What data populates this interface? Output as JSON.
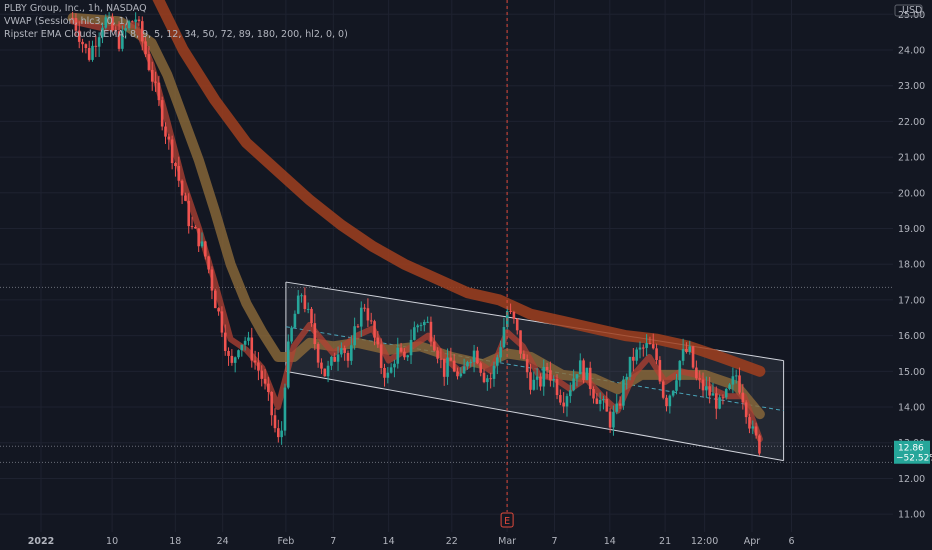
{
  "legend": {
    "line1": "PLBY Group, Inc., 1h, NASDAQ",
    "line2": "VWAP (Session, hlc3, 0, 1)",
    "line3": "Ripster EMA Clouds (EMA, 8, 9, 5, 12, 34, 50, 72, 89, 180, 200, hl2, 0, 0)"
  },
  "currency": "USD",
  "price_tag": {
    "price": "12.86",
    "change": "−52.52%"
  },
  "earnings_marker": "E",
  "colors": {
    "background": "#131722",
    "up": "#26a69a",
    "down": "#ef5350",
    "channel": "#d1d4dc",
    "ema_fast": "#b24233",
    "ema_mid": "#8c6a3a",
    "ema_slow": "#a0401f",
    "vwap": "#8a8e99",
    "grid": "#1e2230",
    "tag": "#26a69a"
  },
  "chart_data": {
    "type": "candlestick",
    "title": "PLBY Group, Inc., 1h, NASDAQ",
    "y_axis": {
      "min": 10.5,
      "max": 25.4,
      "side": "right",
      "unit": "USD",
      "ticks": [
        "11.00",
        "12.00",
        "13.00",
        "14.00",
        "15.00",
        "16.00",
        "17.00",
        "18.00",
        "19.00",
        "20.00",
        "21.00",
        "22.00",
        "23.00",
        "24.00",
        "25.00"
      ]
    },
    "x_axis": {
      "range_days": [
        0,
        100
      ],
      "ticks": [
        {
          "label": "2022",
          "day": 0
        },
        {
          "label": "10",
          "day": 9
        },
        {
          "label": "18",
          "day": 17
        },
        {
          "label": "24",
          "day": 23
        },
        {
          "label": "Feb",
          "day": 31
        },
        {
          "label": "7",
          "day": 37
        },
        {
          "label": "14",
          "day": 44
        },
        {
          "label": "22",
          "day": 52
        },
        {
          "label": "Mar",
          "day": 59
        },
        {
          "label": "7",
          "day": 65
        },
        {
          "label": "14",
          "day": 72
        },
        {
          "label": "21",
          "day": 79
        },
        {
          "label": "12:00",
          "day": 84
        },
        {
          "label": "Apr",
          "day": 90
        },
        {
          "label": "6",
          "day": 95
        }
      ]
    },
    "close_path": [
      [
        4,
        24.9
      ],
      [
        6,
        23.8
      ],
      [
        8,
        24.9
      ],
      [
        10,
        24.2
      ],
      [
        11,
        24.7
      ],
      [
        12,
        24.9
      ],
      [
        13,
        24.1
      ],
      [
        14,
        23.3
      ],
      [
        15,
        22.4
      ],
      [
        16,
        21.5
      ],
      [
        17,
        20.8
      ],
      [
        18,
        19.8
      ],
      [
        19,
        19.0
      ],
      [
        20,
        18.7
      ],
      [
        21,
        18.1
      ],
      [
        22,
        17.0
      ],
      [
        23,
        16.2
      ],
      [
        24,
        15.0
      ],
      [
        25,
        15.8
      ],
      [
        26,
        15.9
      ],
      [
        27,
        15.3
      ],
      [
        28,
        14.8
      ],
      [
        29,
        14.0
      ],
      [
        30,
        13.0
      ],
      [
        30.5,
        13.4
      ],
      [
        31,
        15.2
      ],
      [
        32,
        16.5
      ],
      [
        33,
        17.2
      ],
      [
        34,
        16.4
      ],
      [
        35,
        15.5
      ],
      [
        36,
        14.9
      ],
      [
        37,
        15.3
      ],
      [
        38,
        15.9
      ],
      [
        39,
        15.2
      ],
      [
        40,
        16.4
      ],
      [
        41,
        16.9
      ],
      [
        42,
        16.1
      ],
      [
        43,
        15.2
      ],
      [
        44,
        14.8
      ],
      [
        45,
        15.6
      ],
      [
        46,
        15.2
      ],
      [
        47,
        16.1
      ],
      [
        48,
        16.4
      ],
      [
        49,
        16.3
      ],
      [
        50,
        15.7
      ],
      [
        51,
        15.0
      ],
      [
        52,
        15.3
      ],
      [
        53,
        14.6
      ],
      [
        54,
        15.4
      ],
      [
        55,
        15.6
      ],
      [
        56,
        14.9
      ],
      [
        57,
        14.8
      ],
      [
        58,
        15.6
      ],
      [
        59,
        16.7
      ],
      [
        60,
        16.3
      ],
      [
        61,
        15.3
      ],
      [
        62,
        14.7
      ],
      [
        63,
        14.6
      ],
      [
        64,
        15.1
      ],
      [
        65,
        14.7
      ],
      [
        66,
        14.2
      ],
      [
        67,
        14.6
      ],
      [
        68,
        15.2
      ],
      [
        69,
        14.9
      ],
      [
        70,
        14.4
      ],
      [
        71,
        14.1
      ],
      [
        72,
        13.6
      ],
      [
        73,
        13.9
      ],
      [
        74,
        14.9
      ],
      [
        75,
        15.4
      ],
      [
        76,
        15.6
      ],
      [
        77,
        15.7
      ],
      [
        78,
        15.3
      ],
      [
        79,
        14.1
      ],
      [
        80,
        14.6
      ],
      [
        81,
        15.4
      ],
      [
        82,
        15.6
      ],
      [
        83,
        14.7
      ],
      [
        84,
        14.5
      ],
      [
        85,
        14.3
      ],
      [
        86,
        14.0
      ],
      [
        87,
        14.4
      ],
      [
        88,
        14.9
      ],
      [
        89,
        14.2
      ],
      [
        90,
        13.3
      ],
      [
        91,
        12.86
      ]
    ],
    "ema_fast": [
      [
        4,
        24.8
      ],
      [
        8,
        24.6
      ],
      [
        12,
        24.7
      ],
      [
        14,
        23.6
      ],
      [
        16,
        22.0
      ],
      [
        18,
        20.3
      ],
      [
        20,
        19.0
      ],
      [
        22,
        17.5
      ],
      [
        24,
        15.9
      ],
      [
        26,
        15.6
      ],
      [
        28,
        15.1
      ],
      [
        30,
        14.0
      ],
      [
        32,
        15.7
      ],
      [
        34,
        16.3
      ],
      [
        37,
        15.5
      ],
      [
        40,
        16.0
      ],
      [
        42,
        16.2
      ],
      [
        44,
        15.3
      ],
      [
        47,
        15.7
      ],
      [
        49,
        16.0
      ],
      [
        51,
        15.4
      ],
      [
        53,
        15.0
      ],
      [
        55,
        15.3
      ],
      [
        57,
        15.0
      ],
      [
        59,
        16.1
      ],
      [
        61,
        15.7
      ],
      [
        63,
        14.9
      ],
      [
        65,
        14.8
      ],
      [
        67,
        14.5
      ],
      [
        69,
        14.8
      ],
      [
        71,
        14.3
      ],
      [
        73,
        13.9
      ],
      [
        75,
        14.9
      ],
      [
        77,
        15.4
      ],
      [
        79,
        14.7
      ],
      [
        81,
        15.0
      ],
      [
        83,
        14.9
      ],
      [
        85,
        14.5
      ],
      [
        87,
        14.3
      ],
      [
        89,
        14.3
      ],
      [
        91,
        13.1
      ]
    ],
    "ema_mid": [
      [
        4,
        24.9
      ],
      [
        10,
        24.8
      ],
      [
        14,
        24.2
      ],
      [
        16,
        23.3
      ],
      [
        18,
        22.1
      ],
      [
        20,
        20.9
      ],
      [
        22,
        19.5
      ],
      [
        24,
        18.0
      ],
      [
        26,
        16.9
      ],
      [
        28,
        16.1
      ],
      [
        30,
        15.4
      ],
      [
        32,
        15.4
      ],
      [
        34,
        15.8
      ],
      [
        37,
        15.7
      ],
      [
        40,
        15.8
      ],
      [
        44,
        15.6
      ],
      [
        48,
        15.7
      ],
      [
        52,
        15.4
      ],
      [
        56,
        15.2
      ],
      [
        59,
        15.5
      ],
      [
        62,
        15.4
      ],
      [
        66,
        14.9
      ],
      [
        70,
        14.8
      ],
      [
        73,
        14.5
      ],
      [
        76,
        14.9
      ],
      [
        80,
        14.9
      ],
      [
        84,
        14.9
      ],
      [
        88,
        14.6
      ],
      [
        91,
        13.8
      ]
    ],
    "ema_slow": [
      [
        10,
        26.8
      ],
      [
        14,
        25.8
      ],
      [
        18,
        24.0
      ],
      [
        22,
        22.6
      ],
      [
        26,
        21.4
      ],
      [
        30,
        20.6
      ],
      [
        34,
        19.8
      ],
      [
        38,
        19.1
      ],
      [
        42,
        18.5
      ],
      [
        46,
        18.0
      ],
      [
        50,
        17.6
      ],
      [
        54,
        17.2
      ],
      [
        58,
        17.0
      ],
      [
        62,
        16.6
      ],
      [
        66,
        16.4
      ],
      [
        70,
        16.2
      ],
      [
        74,
        16.0
      ],
      [
        78,
        15.9
      ],
      [
        82,
        15.7
      ],
      [
        86,
        15.4
      ],
      [
        91,
        15.0
      ]
    ],
    "channel": {
      "upper": [
        [
          31,
          17.5
        ],
        [
          94,
          15.3
        ]
      ],
      "lower": [
        [
          31,
          15.0
        ],
        [
          94,
          12.5
        ]
      ],
      "mid": [
        [
          31,
          16.25
        ],
        [
          94,
          13.9
        ]
      ]
    },
    "horizontal_levels": [
      17.35,
      12.9,
      12.45
    ],
    "earnings_day": 59
  }
}
